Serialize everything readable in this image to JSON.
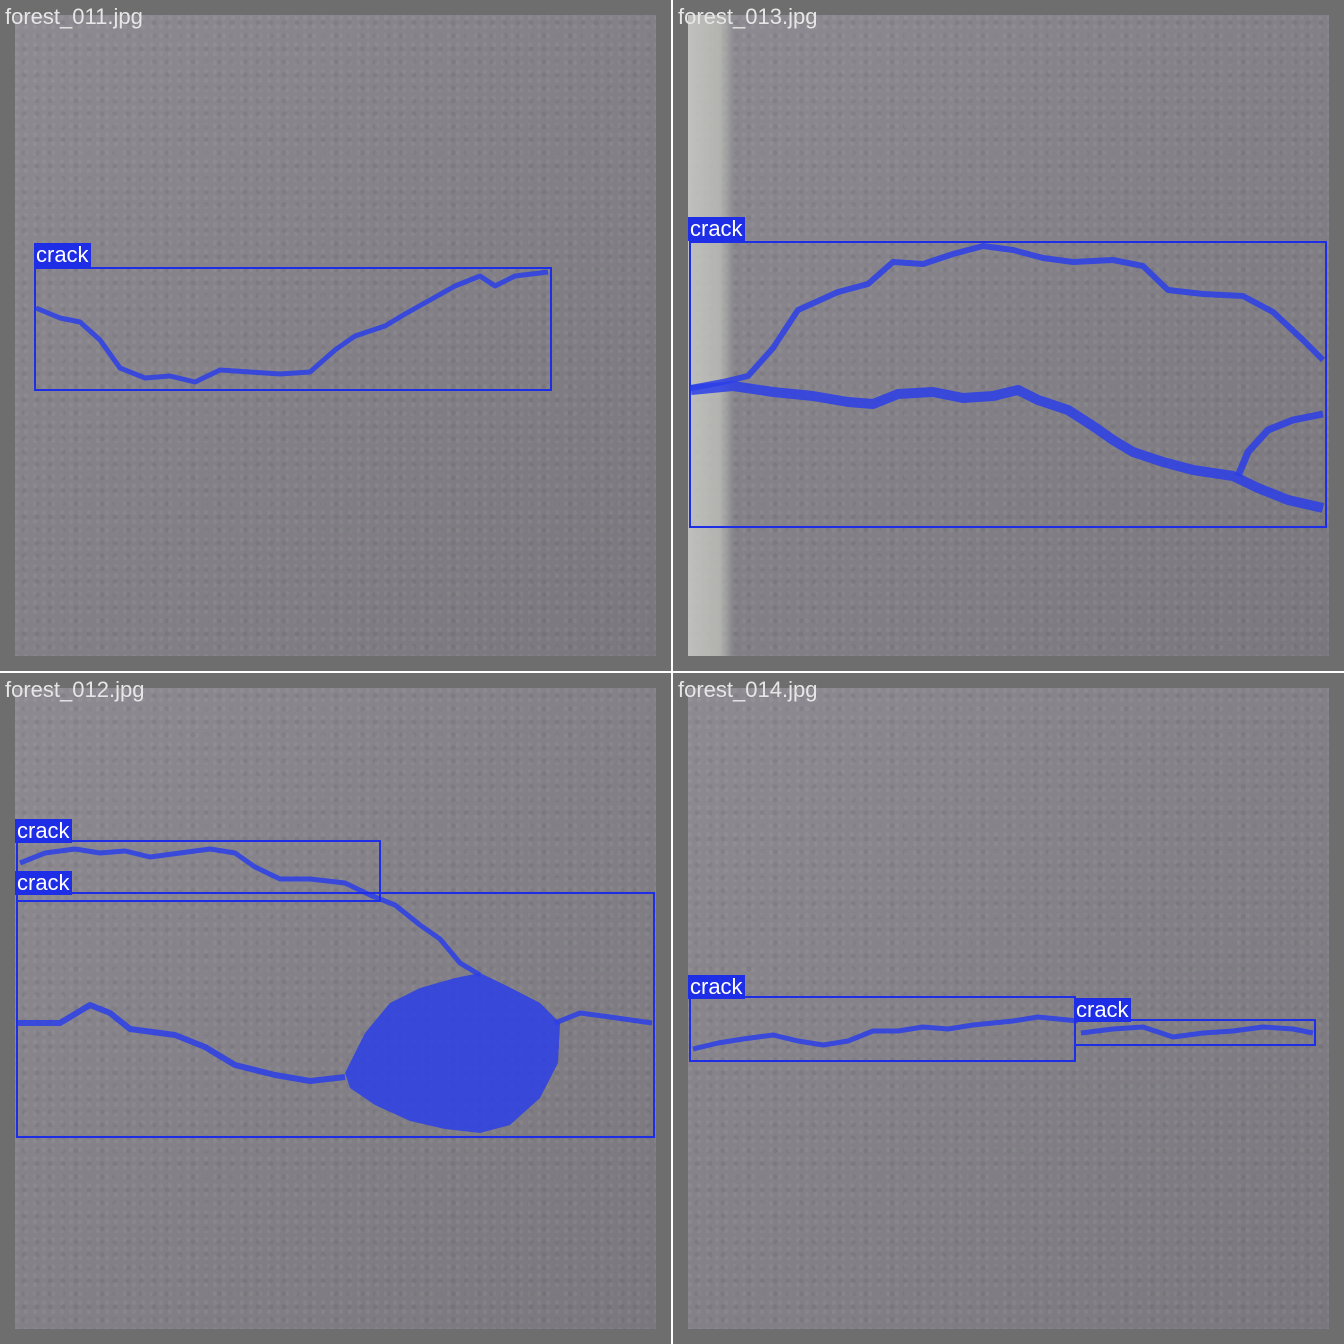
{
  "panels": [
    {
      "filename": "forest_011.jpg",
      "detections": [
        {
          "label": "crack"
        }
      ]
    },
    {
      "filename": "forest_013.jpg",
      "detections": [
        {
          "label": "crack"
        }
      ]
    },
    {
      "filename": "forest_012.jpg",
      "detections": [
        {
          "label": "crack"
        },
        {
          "label": "crack"
        }
      ]
    },
    {
      "filename": "forest_014.jpg",
      "detections": [
        {
          "label": "crack"
        },
        {
          "label": "crack"
        }
      ]
    }
  ],
  "colors": {
    "detection": "#1e2de6",
    "mask": "#2b3ee8",
    "background": "#6e6e6e"
  }
}
